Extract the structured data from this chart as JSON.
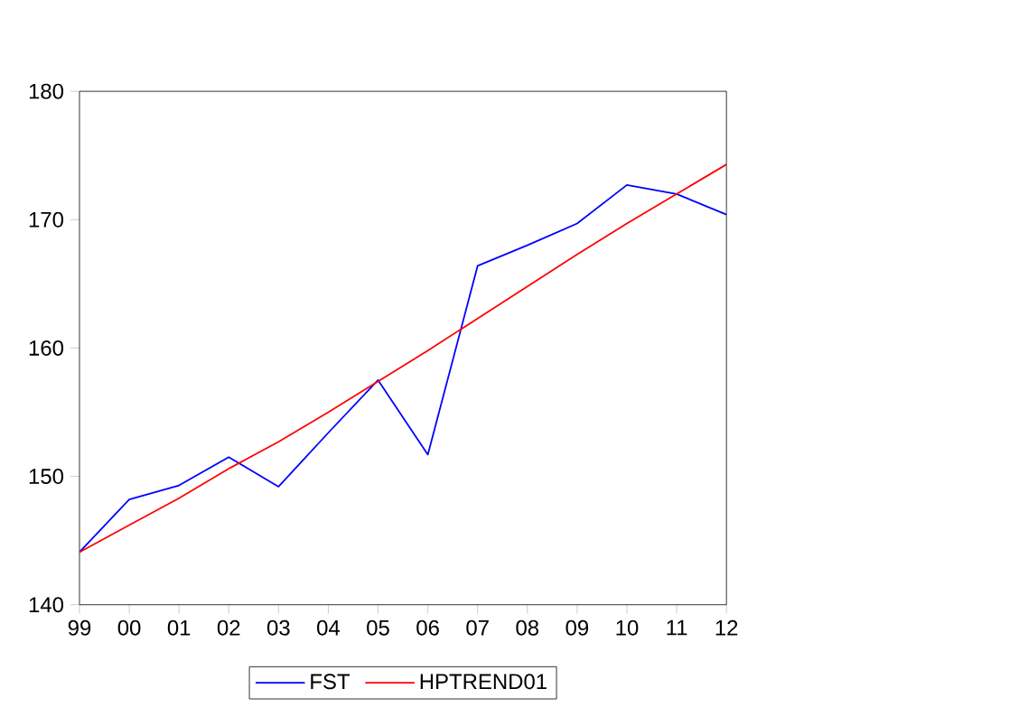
{
  "chart_data": {
    "type": "line",
    "categories": [
      "99",
      "00",
      "01",
      "02",
      "03",
      "04",
      "05",
      "06",
      "07",
      "08",
      "09",
      "10",
      "11",
      "12"
    ],
    "series": [
      {
        "name": "FST",
        "color": "#0000ff",
        "values": [
          144.1,
          148.2,
          149.3,
          151.5,
          149.2,
          153.4,
          157.5,
          151.7,
          166.4,
          168.0,
          169.7,
          172.7,
          172.0,
          170.4
        ]
      },
      {
        "name": "HPTREND01",
        "color": "#ff0000",
        "values": [
          144.1,
          146.2,
          148.3,
          150.6,
          152.7,
          155.0,
          157.4,
          159.8,
          162.3,
          164.8,
          167.3,
          169.7,
          172.0,
          174.3
        ]
      }
    ],
    "ylim": [
      140,
      180
    ],
    "yticks": [
      140,
      150,
      160,
      170,
      180
    ],
    "grid": false,
    "legend": "bottom",
    "marker": "none",
    "line_style": "solid"
  }
}
